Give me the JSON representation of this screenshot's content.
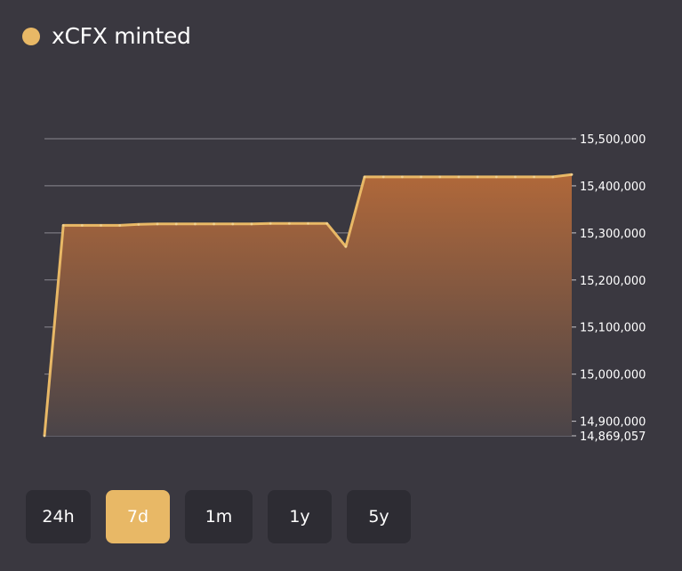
{
  "legend": {
    "label": "xCFX minted",
    "color": "#e8b866"
  },
  "range_buttons": [
    {
      "label": "24h",
      "active": false
    },
    {
      "label": "7d",
      "active": true
    },
    {
      "label": "1m",
      "active": false
    },
    {
      "label": "1y",
      "active": false
    },
    {
      "label": "5y",
      "active": false
    }
  ],
  "chart_data": {
    "type": "area",
    "series": [
      {
        "name": "xCFX minted",
        "color": "#e8b866",
        "values": [
          14869057,
          15316000,
          15316000,
          15316000,
          15316000,
          15318000,
          15319000,
          15319000,
          15319000,
          15319000,
          15319000,
          15319000,
          15320000,
          15320000,
          15320000,
          15320000,
          15271000,
          15419000,
          15419000,
          15419000,
          15419000,
          15419000,
          15419000,
          15419000,
          15419000,
          15419000,
          15419000,
          15419000,
          15424000
        ]
      }
    ],
    "yticks": [
      14869057,
      14900000,
      15000000,
      15100000,
      15200000,
      15300000,
      15400000,
      15500000
    ],
    "ytick_labels": [
      "14,869,057",
      "14,900,000",
      "15,000,000",
      "15,100,000",
      "15,200,000",
      "15,300,000",
      "15,400,000",
      "15,500,000"
    ],
    "ylim": [
      14869057,
      15500000
    ],
    "grid": true,
    "y_axis_position": "right"
  }
}
